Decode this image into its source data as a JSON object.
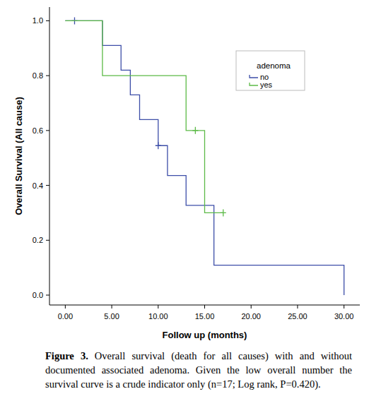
{
  "chart_data": {
    "type": "step",
    "x_label": "Follow up (months)",
    "y_label": "Overall Survival (All cause)",
    "legend_title": "adenoma",
    "legend": "upper right",
    "xlim": [
      -1.7,
      31.7
    ],
    "ylim": [
      -0.036,
      1.05
    ],
    "xticks": [
      {
        "value": 0,
        "label": "0.00"
      },
      {
        "value": 5,
        "label": "5.00"
      },
      {
        "value": 10,
        "label": "10.00"
      },
      {
        "value": 15,
        "label": "15.00"
      },
      {
        "value": 20,
        "label": "20.00"
      },
      {
        "value": 25,
        "label": "25.00"
      },
      {
        "value": 30,
        "label": "30.00"
      }
    ],
    "yticks": [
      {
        "value": 0,
        "label": "0.0"
      },
      0.2,
      0.4,
      0.6,
      0.8,
      {
        "value": 1,
        "label": "1.0"
      }
    ],
    "series": [
      {
        "name": "no",
        "color": "#3d4ea8",
        "x": [
          0,
          4,
          6,
          7,
          8,
          10,
          11,
          13,
          16,
          30
        ],
        "values": [
          1,
          0.91,
          0.82,
          0.73,
          0.64,
          0.545,
          0.436,
          0.327,
          0.109,
          0
        ],
        "censored_x": [
          1,
          10
        ],
        "censored_values": [
          1,
          0.545
        ]
      },
      {
        "name": "yes",
        "color": "#5cba47",
        "x": [
          0,
          4,
          13,
          15
        ],
        "values": [
          1,
          0.8,
          0.6,
          0.3
        ],
        "censored_x": [
          14,
          17
        ],
        "censored_values": [
          0.6,
          0.3
        ]
      }
    ]
  },
  "figure": {
    "label": "Figure 3.",
    "caption": "Overall survival (death for all causes) with and without documented associated adenoma. Given the low overall number the survival curve is a crude indicator only (n=17; Log rank, P=0.420)."
  }
}
